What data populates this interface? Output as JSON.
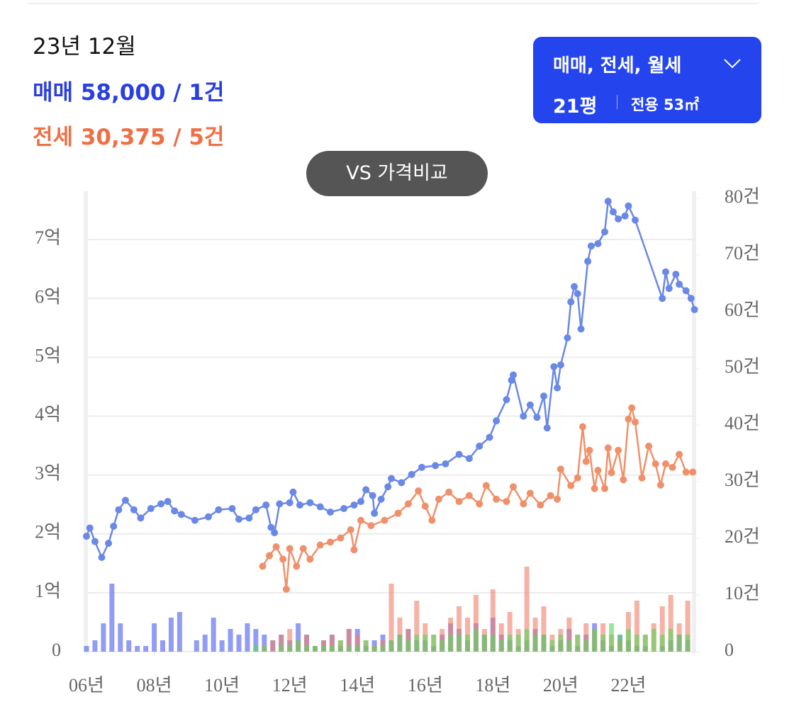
{
  "header": {
    "period": "23년 12월",
    "sale": "매매 58,000 / 1건",
    "jeonse": "전세 30,375 / 5건"
  },
  "filter": {
    "types": "매매, 전세, 월세",
    "size": "21평",
    "area": "전용 53㎡"
  },
  "compare_button": "VS 가격비교",
  "chart_data": {
    "type": "line",
    "xlim": [
      2006,
      2024
    ],
    "xticks": [
      {
        "value": 2006,
        "label": "06년"
      },
      {
        "value": 2008,
        "label": "08년"
      },
      {
        "value": 2010,
        "label": "10년"
      },
      {
        "value": 2012,
        "label": "12년"
      },
      {
        "value": 2014,
        "label": "14년"
      },
      {
        "value": 2016,
        "label": "16년"
      },
      {
        "value": 2018,
        "label": "18년"
      },
      {
        "value": 2020,
        "label": "20년"
      },
      {
        "value": 2022,
        "label": "22년"
      }
    ],
    "ylim": [
      0,
      7.7
    ],
    "yticks": [
      0,
      {
        "value": 1,
        "label": "1억"
      },
      {
        "value": 2,
        "label": "2억"
      },
      {
        "value": 3,
        "label": "3억"
      },
      {
        "value": 4,
        "label": "4억"
      },
      {
        "value": 5,
        "label": "5억"
      },
      {
        "value": 6,
        "label": "6억"
      },
      {
        "value": 7,
        "label": "7억"
      }
    ],
    "y2lim": [
      0,
      80
    ],
    "y2ticks": [
      0,
      {
        "value": 10,
        "label": "10건"
      },
      {
        "value": 20,
        "label": "20건"
      },
      {
        "value": 30,
        "label": "30건"
      },
      {
        "value": 40,
        "label": "40건"
      },
      {
        "value": 50,
        "label": "50건"
      },
      {
        "value": 60,
        "label": "60건"
      },
      {
        "value": 70,
        "label": "70건"
      },
      {
        "value": 80,
        "label": "80건"
      }
    ],
    "grid": true,
    "series": [
      {
        "type": "bar",
        "axis": "y2",
        "color": "#4a5cf0",
        "x": [
          2006,
          2006.25,
          2006.5,
          2006.75,
          2007,
          2007.25,
          2007.5,
          2007.75,
          2008,
          2008.25,
          2008.5,
          2008.75,
          2009,
          2009.25,
          2009.5,
          2009.75,
          2010,
          2010.25,
          2010.5,
          2010.75,
          2011,
          2011.25,
          2011.5,
          2011.75,
          2012,
          2012.25,
          2012.5,
          2012.75,
          2013,
          2013.25,
          2013.5,
          2013.75,
          2014,
          2014.25,
          2014.5,
          2014.75,
          2015,
          2015.25,
          2015.5,
          2015.75,
          2016,
          2016.25,
          2016.5,
          2016.75,
          2017,
          2017.25,
          2017.5,
          2017.75,
          2018,
          2018.25,
          2018.5,
          2018.75,
          2019,
          2019.25,
          2019.5,
          2019.75,
          2020,
          2020.25,
          2020.5,
          2020.75,
          2021,
          2021.25,
          2021.5,
          2021.75,
          2022,
          2022.25,
          2022.5,
          2022.75,
          2023,
          2023.25,
          2023.5,
          2023.75
        ],
        "values": [
          1,
          2,
          5,
          12,
          5,
          2,
          1,
          1,
          5,
          2,
          6,
          7,
          0,
          2,
          3,
          6,
          2,
          4,
          3,
          5,
          4,
          3,
          2,
          3,
          2,
          5,
          3,
          1,
          2,
          3,
          1,
          4,
          4,
          1,
          2,
          3,
          2,
          3,
          4,
          2,
          2,
          1,
          3,
          5,
          4,
          2,
          5,
          3,
          6,
          3,
          2,
          1,
          2,
          4,
          3,
          1,
          2,
          4,
          1,
          3,
          5,
          2,
          1,
          3,
          2,
          1,
          1,
          0,
          1,
          2,
          3,
          2
        ]
      },
      {
        "type": "bar",
        "axis": "y2",
        "color": "#f0806a",
        "x": [
          2011,
          2011.25,
          2011.5,
          2011.75,
          2012,
          2012.25,
          2012.5,
          2012.75,
          2013,
          2013.25,
          2013.5,
          2013.75,
          2014,
          2014.25,
          2014.5,
          2014.75,
          2015,
          2015.25,
          2015.5,
          2015.75,
          2016,
          2016.25,
          2016.5,
          2016.75,
          2017,
          2017.25,
          2017.5,
          2017.75,
          2018,
          2018.25,
          2018.5,
          2018.75,
          2019,
          2019.25,
          2019.5,
          2019.75,
          2020,
          2020.25,
          2020.5,
          2020.75,
          2021,
          2021.25,
          2021.5,
          2021.75,
          2022,
          2022.25,
          2022.5,
          2022.75,
          2023,
          2023.25,
          2023.5,
          2023.75
        ],
        "values": [
          0,
          1,
          2,
          3,
          4,
          2,
          3,
          1,
          2,
          3,
          2,
          4,
          3,
          2,
          1,
          2,
          12,
          6,
          4,
          9,
          5,
          3,
          4,
          6,
          8,
          6,
          10,
          4,
          11,
          5,
          7,
          4,
          15,
          6,
          8,
          3,
          4,
          6,
          3,
          5,
          4,
          5,
          3,
          2,
          7,
          9,
          3,
          5,
          8,
          10,
          5,
          9
        ]
      },
      {
        "type": "bar",
        "axis": "y2",
        "color": "#5cd65c",
        "x": [
          2011,
          2011.25,
          2011.5,
          2011.75,
          2012,
          2012.25,
          2012.5,
          2012.75,
          2013,
          2013.25,
          2013.5,
          2013.75,
          2014,
          2014.25,
          2014.5,
          2014.75,
          2015,
          2015.25,
          2015.5,
          2015.75,
          2016,
          2016.25,
          2016.5,
          2016.75,
          2017,
          2017.25,
          2017.5,
          2017.75,
          2018,
          2018.25,
          2018.5,
          2018.75,
          2019,
          2019.25,
          2019.5,
          2019.75,
          2020,
          2020.25,
          2020.5,
          2020.75,
          2021,
          2021.25,
          2021.5,
          2021.75,
          2022,
          2022.25,
          2022.5,
          2022.75,
          2023,
          2023.25,
          2023.5,
          2023.75
        ],
        "values": [
          1,
          1,
          0,
          1,
          1,
          2,
          1,
          1,
          1,
          1,
          2,
          1,
          1,
          2,
          1,
          1,
          2,
          3,
          2,
          3,
          3,
          3,
          2,
          3,
          3,
          3,
          4,
          3,
          3,
          2,
          3,
          3,
          4,
          3,
          3,
          2,
          3,
          2,
          3,
          2,
          4,
          3,
          5,
          3,
          4,
          3,
          3,
          4,
          3,
          4,
          3,
          3
        ]
      },
      {
        "type": "line",
        "axis": "y",
        "color": "#6a88e6",
        "x": [
          2006,
          2006.1,
          2006.25,
          2006.45,
          2006.65,
          2006.8,
          2006.95,
          2007.15,
          2007.4,
          2007.6,
          2007.9,
          2008.2,
          2008.4,
          2008.6,
          2008.8,
          2009.2,
          2009.6,
          2009.9,
          2010.3,
          2010.5,
          2010.8,
          2011,
          2011.3,
          2011.45,
          2011.55,
          2011.7,
          2012,
          2012.1,
          2012.3,
          2012.6,
          2012.9,
          2013.2,
          2013.6,
          2013.9,
          2014.1,
          2014.25,
          2014.45,
          2014.5,
          2014.7,
          2014.9,
          2015,
          2015.3,
          2015.6,
          2015.9,
          2016.3,
          2016.6,
          2017,
          2017.3,
          2017.6,
          2017.9,
          2018.1,
          2018.4,
          2018.55,
          2018.6,
          2018.9,
          2019.1,
          2019.3,
          2019.5,
          2019.6,
          2019.8,
          2019.9,
          2020,
          2020.2,
          2020.3,
          2020.4,
          2020.5,
          2020.6,
          2020.8,
          2020.9,
          2021.1,
          2021.3,
          2021.4,
          2021.55,
          2021.7,
          2021.9,
          2022,
          2022.2,
          2023,
          2023.1,
          2023.2,
          2023.4,
          2023.5,
          2023.7,
          2023.85,
          2023.95
        ],
        "values": [
          1.96,
          2.1,
          1.87,
          1.6,
          1.84,
          2.13,
          2.41,
          2.57,
          2.41,
          2.27,
          2.43,
          2.51,
          2.55,
          2.39,
          2.33,
          2.23,
          2.29,
          2.41,
          2.43,
          2.25,
          2.27,
          2.41,
          2.49,
          2.11,
          2.02,
          2.51,
          2.53,
          2.71,
          2.49,
          2.53,
          2.46,
          2.37,
          2.43,
          2.49,
          2.55,
          2.75,
          2.65,
          2.35,
          2.59,
          2.8,
          2.94,
          2.87,
          3.01,
          3.13,
          3.16,
          3.19,
          3.35,
          3.28,
          3.49,
          3.64,
          3.92,
          4.28,
          4.61,
          4.7,
          4.0,
          4.19,
          3.98,
          4.34,
          3.8,
          4.84,
          4.48,
          4.87,
          5.33,
          5.94,
          6.2,
          6.08,
          5.48,
          6.63,
          6.89,
          6.93,
          7.13,
          7.65,
          7.47,
          7.35,
          7.4,
          7.57,
          7.33,
          6.0,
          6.45,
          6.17,
          6.41,
          6.24,
          6.13,
          6.0,
          5.81
        ]
      },
      {
        "type": "line",
        "axis": "y",
        "color": "#f0906a",
        "x": [
          2011.2,
          2011.4,
          2011.6,
          2011.8,
          2011.9,
          2012,
          2012.2,
          2012.4,
          2012.6,
          2012.9,
          2013.2,
          2013.5,
          2013.8,
          2013.9,
          2014.1,
          2014.4,
          2014.8,
          2015.2,
          2015.5,
          2015.8,
          2016,
          2016.2,
          2016.4,
          2016.7,
          2017,
          2017.3,
          2017.6,
          2017.8,
          2018.1,
          2018.4,
          2018.6,
          2018.9,
          2019.1,
          2019.4,
          2019.7,
          2019.9,
          2020,
          2020.3,
          2020.5,
          2020.65,
          2020.75,
          2020.85,
          2021,
          2021.1,
          2021.3,
          2021.4,
          2021.5,
          2021.7,
          2021.85,
          2022,
          2022.1,
          2022.2,
          2022.4,
          2022.6,
          2022.8,
          2022.95,
          2023.1,
          2023.3,
          2023.5,
          2023.7,
          2023.9
        ],
        "values": [
          1.45,
          1.63,
          1.78,
          1.57,
          1.06,
          1.75,
          1.45,
          1.75,
          1.57,
          1.81,
          1.86,
          1.93,
          2.07,
          1.73,
          2.23,
          2.14,
          2.23,
          2.35,
          2.51,
          2.73,
          2.47,
          2.23,
          2.59,
          2.71,
          2.55,
          2.65,
          2.51,
          2.82,
          2.59,
          2.55,
          2.8,
          2.51,
          2.69,
          2.49,
          2.65,
          2.59,
          3.1,
          2.82,
          2.95,
          3.82,
          3.23,
          3.42,
          2.77,
          3.08,
          2.77,
          3.46,
          3.04,
          3.42,
          2.92,
          3.95,
          4.14,
          3.9,
          2.95,
          3.49,
          3.19,
          2.83,
          3.19,
          3.13,
          3.35,
          3.05,
          3.05
        ]
      }
    ]
  }
}
